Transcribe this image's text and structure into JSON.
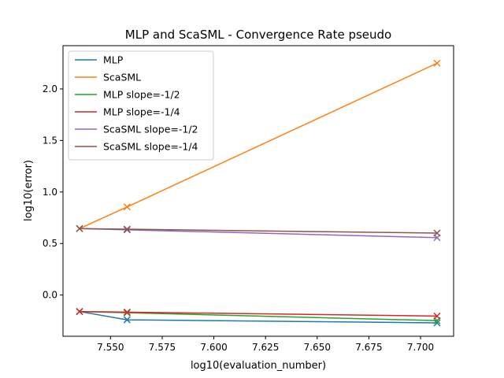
{
  "chart_data": {
    "type": "line",
    "title": "MLP and ScaSML - Convergence Rate pseudo",
    "xlabel": "log10(evaluation_number)",
    "ylabel": "log10(error)",
    "xlim": [
      7.527,
      7.716
    ],
    "ylim": [
      -0.4,
      2.42
    ],
    "xticks": [
      "7.550",
      "7.575",
      "7.600",
      "7.625",
      "7.650",
      "7.675",
      "7.700"
    ],
    "xtick_values": [
      7.55,
      7.575,
      7.6,
      7.625,
      7.65,
      7.675,
      7.7
    ],
    "yticks": [
      "0.0",
      "0.5",
      "1.0",
      "1.5",
      "2.0"
    ],
    "ytick_values": [
      0.0,
      0.5,
      1.0,
      1.5,
      2.0
    ],
    "grid": false,
    "legend_position": "upper-left",
    "x": [
      7.535,
      7.558,
      7.708
    ],
    "series": [
      {
        "name": "MLP",
        "color": "#1f77b4",
        "values": [
          -0.16,
          -0.24,
          -0.27
        ]
      },
      {
        "name": "ScaSML",
        "color": "#ff7f0e",
        "values": [
          0.645,
          0.855,
          2.25
        ]
      },
      {
        "name": "MLP slope=-1/2",
        "color": "#2ca02c",
        "values": [
          -0.16,
          -0.172,
          -0.248
        ]
      },
      {
        "name": "MLP slope=-1/4",
        "color": "#d62728",
        "values": [
          -0.16,
          -0.166,
          -0.204
        ]
      },
      {
        "name": "ScaSML slope=-1/2",
        "color": "#9467bd",
        "values": [
          0.645,
          0.633,
          0.557
        ]
      },
      {
        "name": "ScaSML slope=-1/4",
        "color": "#8c564b",
        "values": [
          0.645,
          0.639,
          0.601
        ]
      }
    ]
  }
}
